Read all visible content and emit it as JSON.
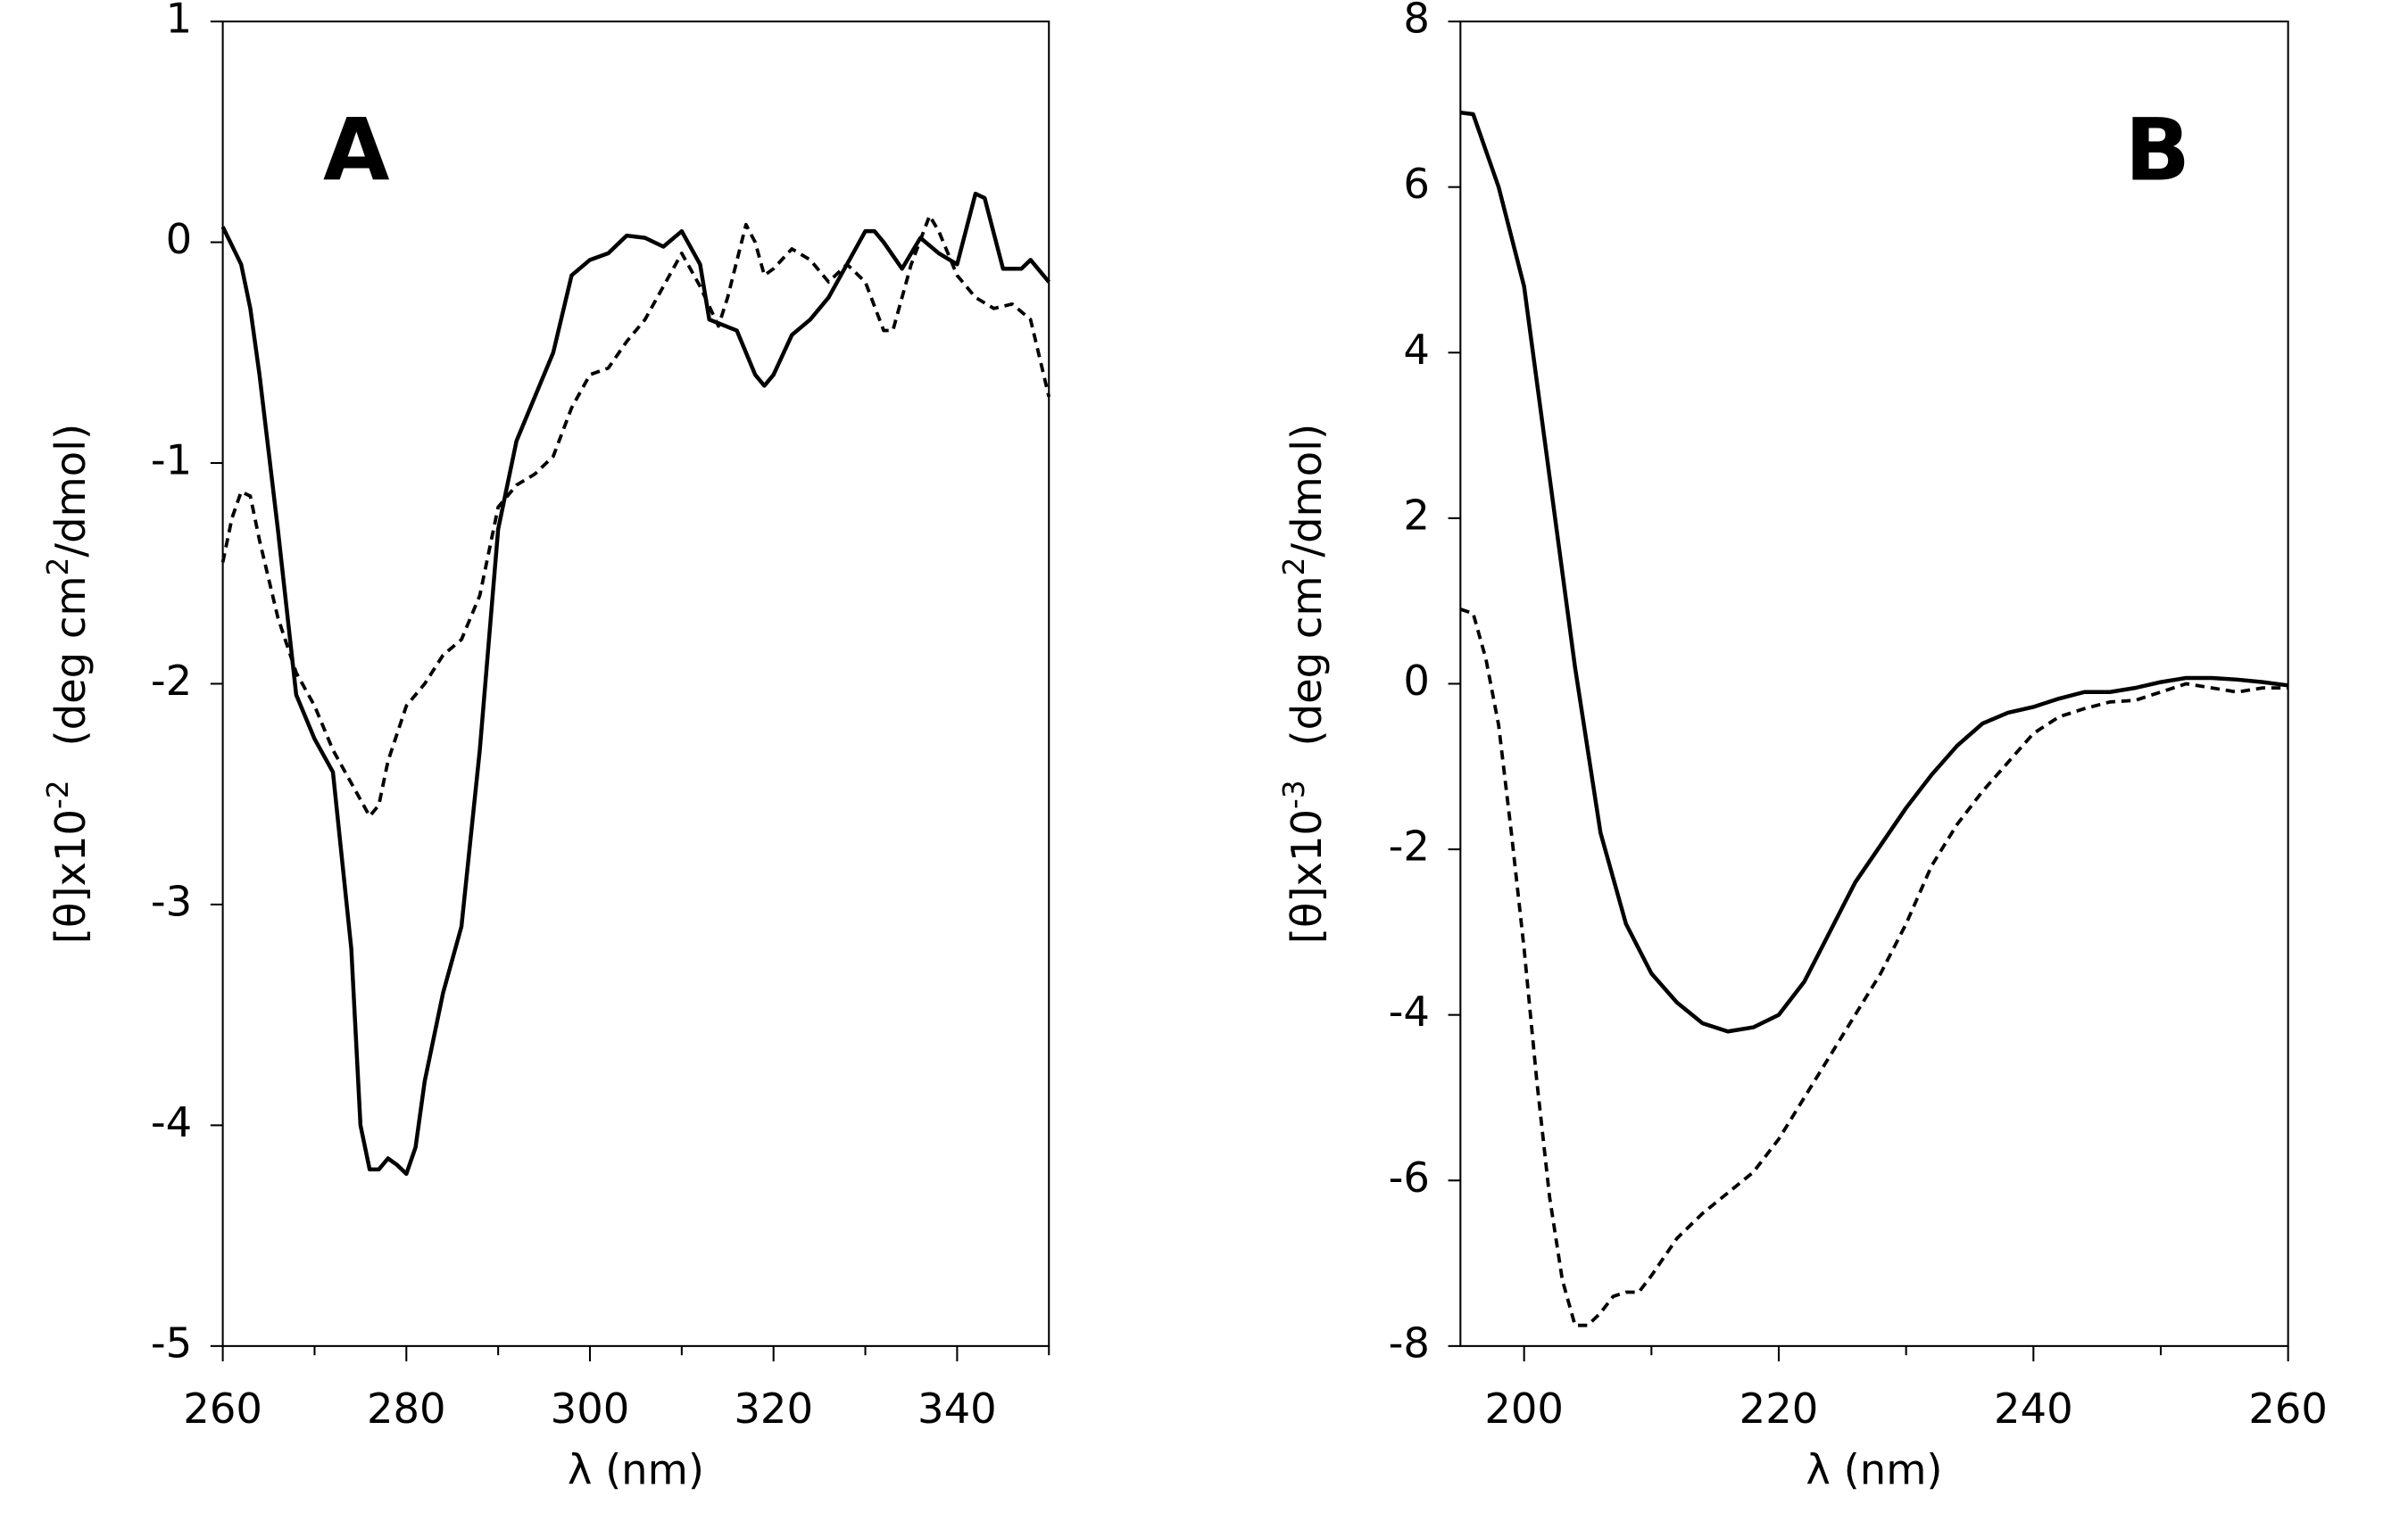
{
  "chart_data": [
    {
      "type": "line",
      "title": "A",
      "xlabel": "λ  (nm)",
      "ylabel": {
        "text": "[θ]x10",
        "exponent": "-2",
        "unit": "(deg cm",
        "unit_exponent": "2",
        "unit_rest": "/dmol)"
      },
      "xlim": [
        260,
        350
      ],
      "ylim": [
        -5,
        1
      ],
      "xticks": [
        260,
        280,
        300,
        320,
        340
      ],
      "xminorticks": [
        270,
        290,
        310,
        330,
        350
      ],
      "yticks": [
        -5,
        -4,
        -3,
        -2,
        -1,
        0,
        1
      ],
      "series": [
        {
          "color": "#000000",
          "dash": false,
          "x": [
            260,
            262,
            263,
            264,
            266,
            268,
            270,
            272,
            274,
            275,
            276,
            277,
            278,
            279,
            280,
            281,
            282,
            284,
            286,
            288,
            290,
            292,
            294,
            296,
            298,
            300,
            302,
            304,
            306,
            308,
            310,
            312,
            313,
            316,
            318,
            319,
            320,
            322,
            324,
            326,
            328,
            330,
            331,
            332,
            334,
            336,
            338,
            340,
            342,
            343,
            345,
            347,
            348,
            350
          ],
          "values": [
            0.07,
            -0.1,
            -0.3,
            -0.6,
            -1.3,
            -2.05,
            -2.25,
            -2.4,
            -3.2,
            -4.0,
            -4.2,
            -4.2,
            -4.15,
            -4.18,
            -4.22,
            -4.1,
            -3.8,
            -3.4,
            -3.1,
            -2.3,
            -1.3,
            -0.9,
            -0.7,
            -0.5,
            -0.15,
            -0.08,
            -0.05,
            0.03,
            0.02,
            -0.02,
            0.05,
            -0.1,
            -0.35,
            -0.4,
            -0.6,
            -0.65,
            -0.6,
            -0.42,
            -0.35,
            -0.25,
            -0.1,
            0.05,
            0.05,
            0,
            -0.12,
            0.02,
            -0.05,
            -0.1,
            0.22,
            0.2,
            -0.12,
            -0.12,
            -0.08,
            -0.18
          ]
        },
        {
          "color": "#000000",
          "dash": true,
          "x": [
            260,
            261,
            262,
            263,
            264,
            266,
            268,
            270,
            272,
            274,
            276,
            277,
            278,
            280,
            282,
            284,
            286,
            288,
            290,
            292,
            294,
            296,
            298,
            300,
            302,
            304,
            306,
            308,
            310,
            312,
            314,
            315,
            317,
            318,
            319,
            320,
            322,
            324,
            326,
            328,
            330,
            332,
            333,
            335,
            337,
            338,
            340,
            342,
            344,
            346,
            348,
            350
          ],
          "values": [
            -1.45,
            -1.25,
            -1.13,
            -1.15,
            -1.35,
            -1.7,
            -1.95,
            -2.1,
            -2.3,
            -2.45,
            -2.6,
            -2.55,
            -2.35,
            -2.1,
            -2.0,
            -1.87,
            -1.8,
            -1.6,
            -1.2,
            -1.1,
            -1.05,
            -0.97,
            -0.75,
            -0.6,
            -0.57,
            -0.45,
            -0.35,
            -0.2,
            -0.05,
            -0.2,
            -0.38,
            -0.25,
            0.08,
            0,
            -0.15,
            -0.12,
            -0.03,
            -0.08,
            -0.18,
            -0.1,
            -0.18,
            -0.4,
            -0.4,
            -0.1,
            0.12,
            0.05,
            -0.15,
            -0.25,
            -0.3,
            -0.28,
            -0.35,
            -0.7
          ]
        }
      ]
    },
    {
      "type": "line",
      "title": "B",
      "xlabel": "λ  (nm)",
      "ylabel": {
        "text": "[θ]x10",
        "exponent": "-3",
        "unit": "(deg cm",
        "unit_exponent": "2",
        "unit_rest": "/dmol)"
      },
      "xlim": [
        195,
        260
      ],
      "ylim": [
        -8,
        8
      ],
      "xticks": [
        200,
        220,
        240,
        260
      ],
      "xminorticks": [
        210,
        230,
        250
      ],
      "yticks": [
        -8,
        -6,
        -4,
        -2,
        0,
        2,
        4,
        6,
        8
      ],
      "series": [
        {
          "color": "#000000",
          "dash": false,
          "x": [
            195,
            196,
            198,
            200,
            202,
            204,
            206,
            208,
            210,
            212,
            214,
            216,
            218,
            220,
            222,
            224,
            226,
            228,
            230,
            232,
            234,
            236,
            238,
            240,
            242,
            244,
            246,
            248,
            250,
            252,
            254,
            256,
            258,
            260
          ],
          "values": [
            6.9,
            6.88,
            6.0,
            4.8,
            2.5,
            0.2,
            -1.8,
            -2.9,
            -3.5,
            -3.85,
            -4.1,
            -4.2,
            -4.15,
            -4.0,
            -3.6,
            -3.0,
            -2.4,
            -1.95,
            -1.5,
            -1.1,
            -0.75,
            -0.48,
            -0.35,
            -0.28,
            -0.18,
            -0.1,
            -0.1,
            -0.05,
            0.02,
            0.07,
            0.07,
            0.05,
            0.02,
            -0.02
          ]
        },
        {
          "color": "#000000",
          "dash": true,
          "x": [
            195,
            196,
            197,
            198,
            199,
            200,
            201,
            202,
            203,
            204,
            205,
            206,
            207,
            208,
            209,
            210,
            212,
            214,
            216,
            218,
            220,
            222,
            224,
            226,
            228,
            230,
            232,
            234,
            236,
            238,
            240,
            242,
            244,
            246,
            248,
            250,
            252,
            254,
            256,
            258,
            260
          ],
          "values": [
            0.9,
            0.85,
            0.3,
            -0.5,
            -1.8,
            -3.2,
            -4.8,
            -6.2,
            -7.2,
            -7.75,
            -7.75,
            -7.6,
            -7.4,
            -7.35,
            -7.35,
            -7.15,
            -6.7,
            -6.4,
            -6.15,
            -5.9,
            -5.5,
            -5.0,
            -4.5,
            -4.0,
            -3.5,
            -2.9,
            -2.2,
            -1.7,
            -1.3,
            -0.95,
            -0.6,
            -0.4,
            -0.3,
            -0.22,
            -0.2,
            -0.1,
            0,
            -0.05,
            -0.1,
            -0.05,
            -0.05
          ]
        }
      ]
    }
  ]
}
